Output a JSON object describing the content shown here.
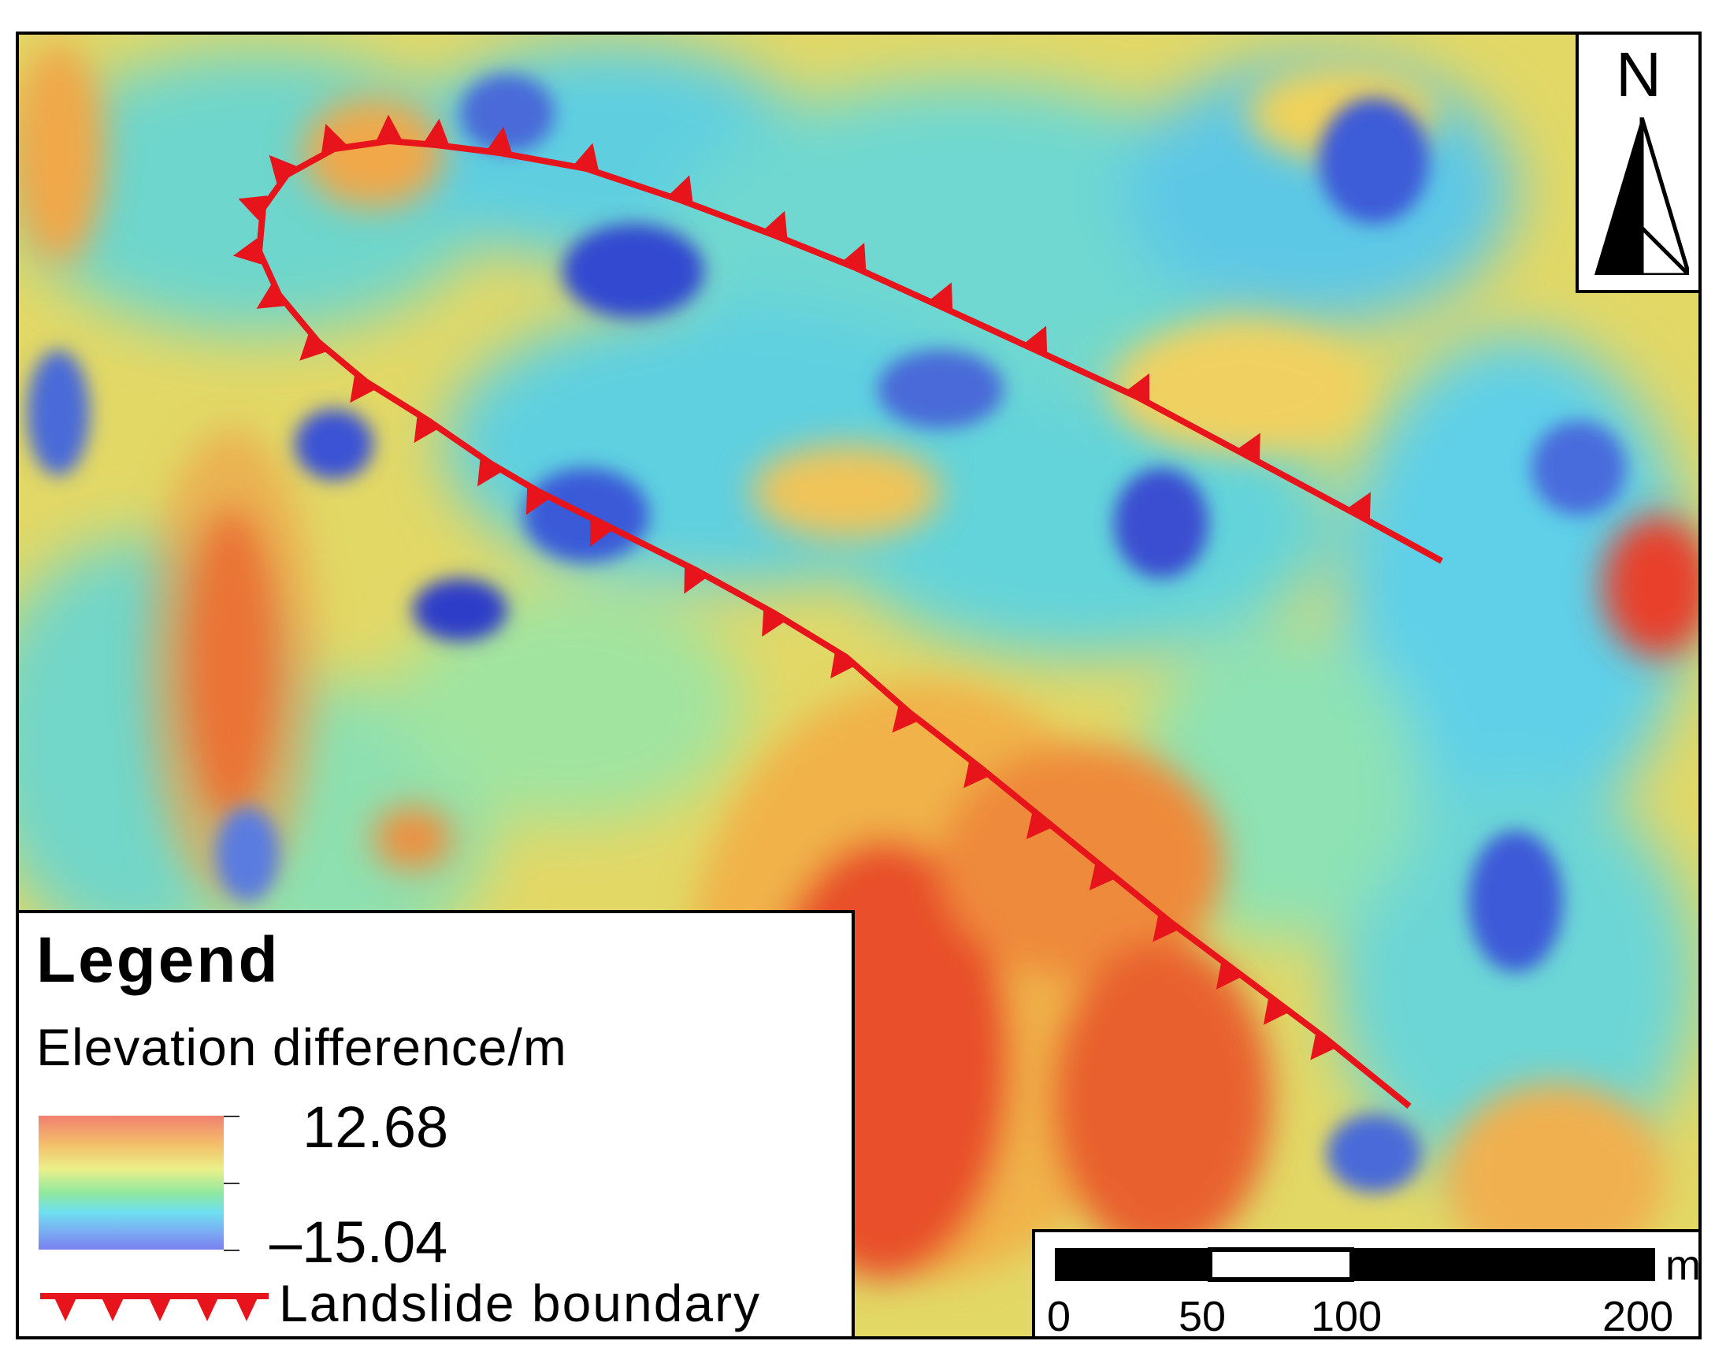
{
  "north_arrow": {
    "label": "N"
  },
  "legend": {
    "title": "Legend",
    "subtitle": "Elevation difference/m",
    "max_value": "12.68",
    "min_value": "–15.04",
    "boundary_label": "Landslide boundary",
    "ramp_colors": [
      "#f08070",
      "#f4c06a",
      "#eaf08a",
      "#8ee8a0",
      "#6ee0f0",
      "#7aa8f2",
      "#7a80f0"
    ]
  },
  "scale_bar": {
    "unit": "m",
    "ticks": [
      "0",
      "50",
      "100",
      "200"
    ]
  },
  "colors": {
    "boundary": "#e8141c",
    "high": "#d92a1e",
    "mid": "#e8dc5c",
    "low": "#3a4fd6"
  }
}
